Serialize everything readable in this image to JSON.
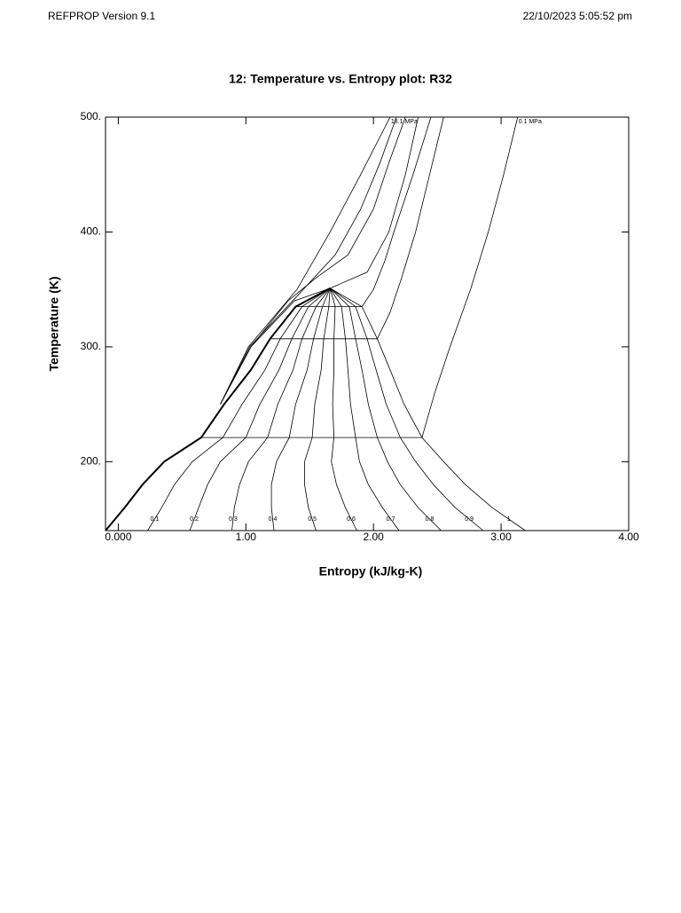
{
  "header": {
    "software": "REFPROP Version 9.1",
    "timestamp": "22/10/2023 5:05:52 pm"
  },
  "chart_data": {
    "type": "line",
    "title": "12: Temperature vs. Entropy plot: R32",
    "x_label": "Entropy (kJ/kg-K)",
    "y_label": "Temperature (K)",
    "xlim": [
      -0.1,
      4.0
    ],
    "ylim": [
      140,
      500
    ],
    "xticks": [
      {
        "value": 0,
        "label": "0.000"
      },
      {
        "value": 1,
        "label": "1.00"
      },
      {
        "value": 2,
        "label": "2.00"
      },
      {
        "value": 3,
        "label": "3.00"
      },
      {
        "value": 4,
        "label": "4.00"
      }
    ],
    "yticks": [
      {
        "value": 200,
        "label": "200."
      },
      {
        "value": 300,
        "label": "300."
      },
      {
        "value": 400,
        "label": "400."
      },
      {
        "value": 500,
        "label": "500."
      }
    ],
    "grid": false,
    "color": "#000000",
    "series": [
      {
        "name": null,
        "x": [
          -0.1,
          0.05,
          0.19,
          0.36,
          0.65,
          0.83,
          1.04,
          1.19,
          1.39,
          1.66
        ],
        "values": [
          140,
          160,
          180,
          200,
          221,
          250,
          280,
          307,
          335,
          351
        ]
      },
      {
        "name": "0.1",
        "x": [
          0.23,
          0.34,
          0.44,
          0.58,
          0.82,
          0.97,
          1.15,
          1.27,
          1.44,
          1.66
        ],
        "values": [
          140,
          160,
          180,
          200,
          221,
          250,
          280,
          307,
          335,
          351
        ]
      },
      {
        "name": "0.2",
        "x": [
          0.56,
          0.63,
          0.7,
          0.8,
          1.0,
          1.11,
          1.26,
          1.36,
          1.49,
          1.66
        ],
        "values": [
          140,
          160,
          180,
          200,
          221,
          250,
          280,
          307,
          335,
          351
        ]
      },
      {
        "name": "0.3",
        "x": [
          0.89,
          0.91,
          0.95,
          1.02,
          1.17,
          1.25,
          1.37,
          1.44,
          1.55,
          1.66
        ],
        "values": [
          140,
          160,
          180,
          200,
          221,
          250,
          280,
          307,
          335,
          351
        ]
      },
      {
        "name": "0.4",
        "x": [
          1.22,
          1.2,
          1.2,
          1.24,
          1.34,
          1.39,
          1.48,
          1.53,
          1.6,
          1.66
        ],
        "values": [
          140,
          160,
          180,
          200,
          221,
          250,
          280,
          307,
          335,
          351
        ]
      },
      {
        "name": "0.5",
        "x": [
          1.55,
          1.49,
          1.46,
          1.46,
          1.52,
          1.54,
          1.59,
          1.61,
          1.65,
          1.66
        ],
        "values": [
          140,
          160,
          180,
          200,
          221,
          250,
          280,
          307,
          335,
          351
        ]
      },
      {
        "name": "0.6",
        "x": [
          1.87,
          1.78,
          1.71,
          1.67,
          1.69,
          1.68,
          1.69,
          1.69,
          1.7,
          1.66
        ],
        "values": [
          140,
          160,
          180,
          200,
          221,
          250,
          280,
          307,
          335,
          351
        ]
      },
      {
        "name": "0.7",
        "x": [
          2.2,
          2.07,
          1.96,
          1.89,
          1.86,
          1.82,
          1.8,
          1.78,
          1.75,
          1.66
        ],
        "values": [
          140,
          160,
          180,
          200,
          221,
          250,
          280,
          307,
          335,
          351
        ]
      },
      {
        "name": "0.8",
        "x": [
          2.53,
          2.35,
          2.21,
          2.11,
          2.03,
          1.96,
          1.91,
          1.86,
          1.81,
          1.66
        ],
        "values": [
          140,
          160,
          180,
          200,
          221,
          250,
          280,
          307,
          335,
          351
        ]
      },
      {
        "name": "0.9",
        "x": [
          2.86,
          2.64,
          2.47,
          2.33,
          2.21,
          2.1,
          2.02,
          1.95,
          1.86,
          1.66
        ],
        "values": [
          140,
          160,
          180,
          200,
          221,
          250,
          280,
          307,
          335,
          351
        ]
      },
      {
        "name": "1",
        "x": [
          3.19,
          2.93,
          2.72,
          2.55,
          2.38,
          2.24,
          2.13,
          2.03,
          1.91,
          1.66
        ],
        "values": [
          140,
          160,
          180,
          200,
          221,
          250,
          280,
          307,
          335,
          351
        ]
      }
    ],
    "isobars": [
      {
        "name": "18.1 MPa",
        "x": [
          0.8,
          1.02,
          1.4,
          1.66,
          1.9,
          2.13
        ],
        "values": [
          250,
          300,
          350,
          400,
          450,
          500
        ]
      },
      {
        "name": null,
        "x": [
          0.8,
          1.03,
          1.45,
          1.7,
          1.9,
          2.05,
          2.18
        ],
        "values": [
          250,
          300,
          350,
          380,
          420,
          460,
          500
        ]
      },
      {
        "name": null,
        "x": [
          0.8,
          1.04,
          1.33,
          1.55,
          1.8,
          2.0,
          2.12,
          2.25
        ],
        "values": [
          250,
          300,
          340,
          360,
          380,
          420,
          460,
          500
        ]
      },
      {
        "name": null,
        "x": [
          0.8,
          1.04,
          1.38,
          1.66,
          1.95,
          2.12,
          2.25,
          2.35
        ],
        "values": [
          250,
          300,
          340,
          351,
          365,
          400,
          450,
          500
        ]
      },
      {
        "name": null,
        "x": [
          1.39,
          1.91,
          2.0,
          2.09,
          2.16,
          2.31,
          2.45
        ],
        "values": [
          335,
          335,
          350,
          375,
          400,
          450,
          500
        ]
      },
      {
        "name": null,
        "x": [
          1.19,
          2.03,
          2.13,
          2.22,
          2.33,
          2.44,
          2.55
        ],
        "values": [
          307,
          307,
          330,
          360,
          400,
          450,
          500
        ]
      },
      {
        "name": "0.1 MPa",
        "x": [
          0.65,
          2.38,
          2.48,
          2.6,
          2.76,
          2.9,
          3.02,
          3.13
        ],
        "values": [
          221,
          221,
          260,
          300,
          350,
          400,
          450,
          500
        ]
      }
    ]
  }
}
